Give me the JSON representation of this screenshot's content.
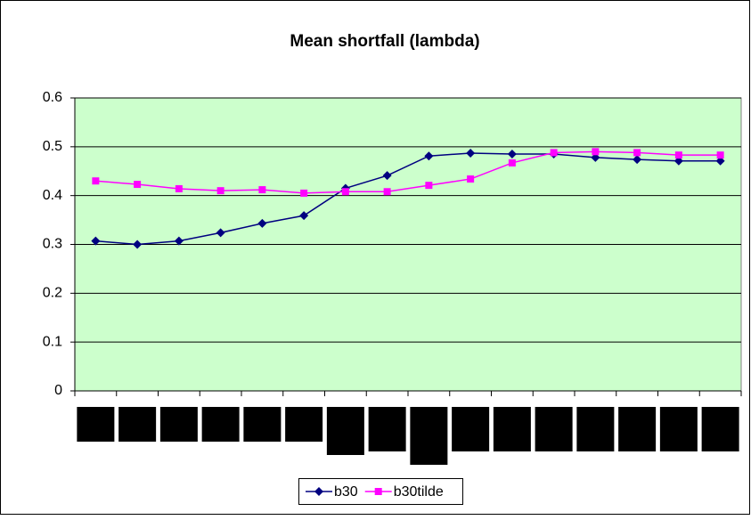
{
  "chart_data": {
    "type": "line",
    "title": "Mean shortfall (lambda)",
    "categories": [
      null,
      null,
      null,
      null,
      null,
      null,
      null,
      null,
      null,
      null,
      null,
      null,
      null,
      null,
      null,
      null
    ],
    "series": [
      {
        "name": "b30",
        "color": "#000080",
        "marker": "diamond",
        "values": [
          0.307,
          0.3,
          0.307,
          0.324,
          0.343,
          0.359,
          0.415,
          0.441,
          0.481,
          0.487,
          0.485,
          0.485,
          0.478,
          0.474,
          0.471,
          0.471
        ]
      },
      {
        "name": "b30tilde",
        "color": "#ff00ff",
        "marker": "square",
        "values": [
          0.43,
          0.423,
          0.414,
          0.41,
          0.412,
          0.405,
          0.408,
          0.408,
          0.421,
          0.434,
          0.467,
          0.488,
          0.49,
          0.488,
          0.483,
          0.483
        ]
      }
    ],
    "ylim": [
      0,
      0.6
    ],
    "yticks": [
      0,
      0.1,
      0.2,
      0.3,
      0.4,
      0.5,
      0.6
    ],
    "grid": true,
    "plot_background": "#ccffcc",
    "legend": "bottom"
  }
}
